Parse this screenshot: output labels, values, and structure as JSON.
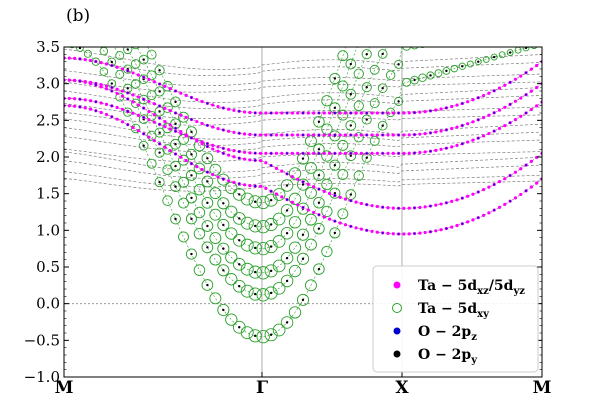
{
  "panel_label": "(b)",
  "legend": {
    "items": [
      {
        "label": "Ta − 5d",
        "sub": "xz",
        "mid": "/5d",
        "sub2": "yz",
        "color": "#ff00ff",
        "marker": "filled-circle"
      },
      {
        "label": "Ta − 5d",
        "sub": "xy",
        "mid": "",
        "sub2": "",
        "color": "#2ca02c",
        "marker": "open-circle"
      },
      {
        "label": "O − 2p",
        "sub": "z",
        "mid": "",
        "sub2": "",
        "color": "#0000cc",
        "marker": "filled-circle"
      },
      {
        "label": "O − 2p",
        "sub": "y",
        "mid": "",
        "sub2": "",
        "color": "#000000",
        "marker": "filled-circle"
      }
    ]
  },
  "chart_data": {
    "type": "scatter",
    "title": "",
    "xlabel": "",
    "ylabel": "",
    "ylim": [
      -1.0,
      3.5
    ],
    "yticks": [
      -1.0,
      -0.5,
      0.0,
      0.5,
      1.0,
      1.5,
      2.0,
      2.5,
      3.0,
      3.5
    ],
    "ytick_labels": [
      "−1.0",
      "−0.5",
      "0.0",
      "0.5",
      "1.0",
      "1.5",
      "2.0",
      "2.5",
      "3.0",
      "3.5"
    ],
    "kpoints": [
      "M",
      "Γ",
      "X",
      "M"
    ],
    "kpoint_positions": [
      0,
      1.414,
      2.414,
      3.414
    ],
    "fermi_level": 0.0,
    "grid": false,
    "legend_position": "bottom-right",
    "series": [
      {
        "name": "Ta − 5dxy",
        "marker": "open-circle",
        "color": "#2ca02c",
        "bands_gamma_minimum": [
          -0.45,
          0.12,
          0.42,
          0.75,
          1.05,
          1.38
        ],
        "bands_M_value": [
          3.5,
          3.5,
          3.5,
          3.5,
          3.5,
          3.5
        ]
      },
      {
        "name": "Ta − 5dxz/5dyz",
        "marker": "filled-circle",
        "color": "#ff00ff",
        "band_M_to_X_lower": {
          "M": 2.7,
          "Gamma": 1.6,
          "X": 0.95,
          "M_end": 1.7
        },
        "band_M_to_X_upper": {
          "M": 3.05,
          "Gamma": 2.3,
          "X": 2.3,
          "M_end": 3.0
        }
      },
      {
        "name": "O − 2pz",
        "marker": "filled-circle",
        "color": "#0000cc"
      },
      {
        "name": "O − 2py",
        "marker": "filled-circle",
        "color": "#000000"
      }
    ],
    "background_bands_range": [
      1.6,
      3.5
    ]
  }
}
